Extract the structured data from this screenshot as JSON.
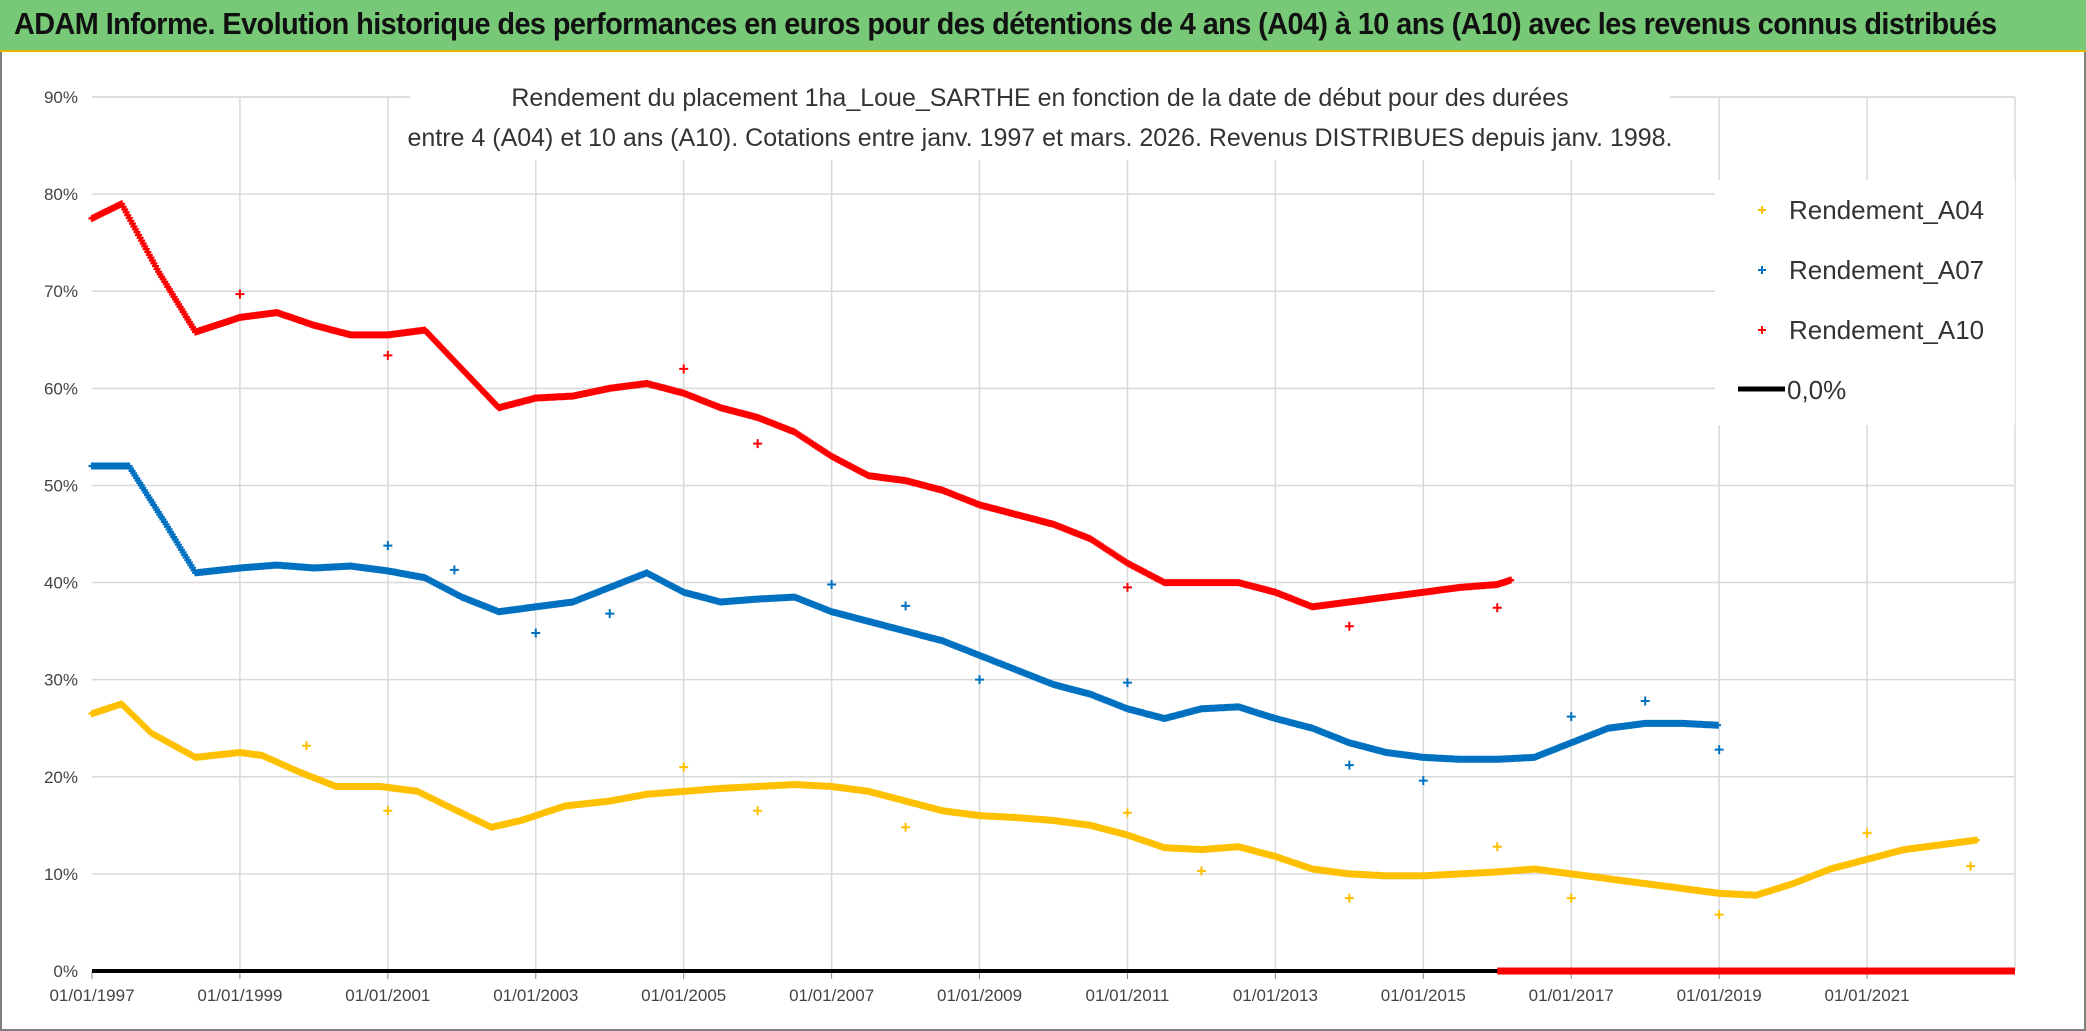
{
  "header": {
    "title": "ADAM Informe. Evolution historique des performances en euros pour des détentions de 4 ans (A04) à 10 ans (A10) avec les revenus connus distribués"
  },
  "chart_data": {
    "type": "scatter",
    "subtitle_line1": "Rendement du placement 1ha_Loue_SARTHE en fonction de la date de début pour des durées",
    "subtitle_line2": "entre 4 (A04) et 10 ans (A10). Cotations entre janv. 1997 et mars. 2026. Revenus DISTRIBUES depuis janv. 1998.",
    "x_start_year": 1997,
    "x_end_year": 2023,
    "x_tick_labels": [
      "01/01/1997",
      "01/01/1999",
      "01/01/2001",
      "01/01/2003",
      "01/01/2005",
      "01/01/2007",
      "01/01/2009",
      "01/01/2011",
      "01/01/2013",
      "01/01/2015",
      "01/01/2017",
      "01/01/2019",
      "01/01/2021"
    ],
    "ylim": [
      0,
      90
    ],
    "y_tick_labels": [
      "0%",
      "10%",
      "20%",
      "30%",
      "40%",
      "50%",
      "60%",
      "70%",
      "80%",
      "90%"
    ],
    "legend": [
      "Rendement_A04",
      "Rendement_A07",
      "Rendement_A10",
      "0,0%"
    ],
    "colors": {
      "A04": "#ffc000",
      "A07": "#0070c0",
      "A10": "#ff0000",
      "zero": "#000000"
    },
    "series": [
      {
        "name": "Rendement_A04",
        "points": [
          [
            1997.0,
            26.5
          ],
          [
            1997.4,
            27.5
          ],
          [
            1997.8,
            24.5
          ],
          [
            1998.4,
            22.0
          ],
          [
            1999.0,
            22.5
          ],
          [
            1999.3,
            22.2
          ],
          [
            1999.8,
            20.5
          ],
          [
            2000.3,
            19.0
          ],
          [
            2000.9,
            19.0
          ],
          [
            2001.4,
            18.5
          ],
          [
            2001.8,
            17.0
          ],
          [
            2002.4,
            14.8
          ],
          [
            2002.8,
            15.5
          ],
          [
            2003.4,
            17.0
          ],
          [
            2004.0,
            17.5
          ],
          [
            2004.5,
            18.2
          ],
          [
            2005.0,
            18.5
          ],
          [
            2005.5,
            18.8
          ],
          [
            2006.0,
            19.0
          ],
          [
            2006.5,
            19.2
          ],
          [
            2007.0,
            19.0
          ],
          [
            2007.5,
            18.5
          ],
          [
            2008.0,
            17.5
          ],
          [
            2008.5,
            16.5
          ],
          [
            2009.0,
            16.0
          ],
          [
            2009.5,
            15.8
          ],
          [
            2010.0,
            15.5
          ],
          [
            2010.5,
            15.0
          ],
          [
            2011.0,
            14.0
          ],
          [
            2011.5,
            12.7
          ],
          [
            2012.0,
            12.5
          ],
          [
            2012.5,
            12.8
          ],
          [
            2013.0,
            11.8
          ],
          [
            2013.5,
            10.5
          ],
          [
            2014.0,
            10.0
          ],
          [
            2014.5,
            9.8
          ],
          [
            2015.0,
            9.8
          ],
          [
            2015.5,
            10.0
          ],
          [
            2016.0,
            10.2
          ],
          [
            2016.5,
            10.5
          ],
          [
            2017.0,
            10.0
          ],
          [
            2017.5,
            9.5
          ],
          [
            2018.0,
            9.0
          ],
          [
            2018.5,
            8.5
          ],
          [
            2019.0,
            8.0
          ],
          [
            2019.5,
            7.8
          ],
          [
            2020.0,
            9.0
          ],
          [
            2020.5,
            10.5
          ],
          [
            2021.0,
            11.5
          ],
          [
            2021.5,
            12.5
          ],
          [
            2022.0,
            13.0
          ],
          [
            2022.5,
            13.5
          ]
        ],
        "outliers": [
          [
            1999.9,
            23.2
          ],
          [
            2001.0,
            16.5
          ],
          [
            2005.0,
            21.0
          ],
          [
            2006.0,
            16.5
          ],
          [
            2008.0,
            14.8
          ],
          [
            2011.0,
            16.3
          ],
          [
            2012.0,
            10.3
          ],
          [
            2014.0,
            7.5
          ],
          [
            2016.0,
            12.8
          ],
          [
            2017.0,
            7.5
          ],
          [
            2019.0,
            5.8
          ],
          [
            2021.0,
            14.2
          ],
          [
            2022.4,
            10.8
          ]
        ]
      },
      {
        "name": "Rendement_A07",
        "points": [
          [
            1997.0,
            52.0
          ],
          [
            1997.5,
            52.0
          ],
          [
            1998.0,
            46.0
          ],
          [
            1998.4,
            41.0
          ],
          [
            1999.0,
            41.5
          ],
          [
            1999.5,
            41.8
          ],
          [
            2000.0,
            41.5
          ],
          [
            2000.5,
            41.7
          ],
          [
            2001.0,
            41.2
          ],
          [
            2001.5,
            40.5
          ],
          [
            2002.0,
            38.5
          ],
          [
            2002.5,
            37.0
          ],
          [
            2003.0,
            37.5
          ],
          [
            2003.5,
            38.0
          ],
          [
            2004.0,
            39.5
          ],
          [
            2004.5,
            41.0
          ],
          [
            2005.0,
            39.0
          ],
          [
            2005.5,
            38.0
          ],
          [
            2006.0,
            38.3
          ],
          [
            2006.5,
            38.5
          ],
          [
            2007.0,
            37.0
          ],
          [
            2007.5,
            36.0
          ],
          [
            2008.0,
            35.0
          ],
          [
            2008.5,
            34.0
          ],
          [
            2009.0,
            32.5
          ],
          [
            2009.5,
            31.0
          ],
          [
            2010.0,
            29.5
          ],
          [
            2010.5,
            28.5
          ],
          [
            2011.0,
            27.0
          ],
          [
            2011.5,
            26.0
          ],
          [
            2012.0,
            27.0
          ],
          [
            2012.5,
            27.2
          ],
          [
            2013.0,
            26.0
          ],
          [
            2013.5,
            25.0
          ],
          [
            2014.0,
            23.5
          ],
          [
            2014.5,
            22.5
          ],
          [
            2015.0,
            22.0
          ],
          [
            2015.5,
            21.8
          ],
          [
            2016.0,
            21.8
          ],
          [
            2016.5,
            22.0
          ],
          [
            2017.0,
            23.5
          ],
          [
            2017.5,
            25.0
          ],
          [
            2018.0,
            25.5
          ],
          [
            2018.5,
            25.5
          ],
          [
            2019.0,
            25.3
          ]
        ],
        "outliers": [
          [
            2001.0,
            43.8
          ],
          [
            2001.9,
            41.3
          ],
          [
            2003.0,
            34.8
          ],
          [
            2004.0,
            36.8
          ],
          [
            2007.0,
            39.8
          ],
          [
            2008.0,
            37.6
          ],
          [
            2009.0,
            30.0
          ],
          [
            2011.0,
            29.7
          ],
          [
            2014.0,
            21.2
          ],
          [
            2015.0,
            19.6
          ],
          [
            2017.0,
            26.2
          ],
          [
            2018.0,
            27.8
          ],
          [
            2019.0,
            22.8
          ]
        ]
      },
      {
        "name": "Rendement_A10",
        "points": [
          [
            1997.0,
            77.5
          ],
          [
            1997.4,
            79.0
          ],
          [
            1997.9,
            72.0
          ],
          [
            1998.4,
            65.8
          ],
          [
            1999.0,
            67.3
          ],
          [
            1999.5,
            67.8
          ],
          [
            2000.0,
            66.5
          ],
          [
            2000.5,
            65.5
          ],
          [
            2001.0,
            65.5
          ],
          [
            2001.5,
            66.0
          ],
          [
            2002.0,
            62.0
          ],
          [
            2002.5,
            58.0
          ],
          [
            2003.0,
            59.0
          ],
          [
            2003.5,
            59.2
          ],
          [
            2004.0,
            60.0
          ],
          [
            2004.5,
            60.5
          ],
          [
            2005.0,
            59.5
          ],
          [
            2005.5,
            58.0
          ],
          [
            2006.0,
            57.0
          ],
          [
            2006.5,
            55.5
          ],
          [
            2007.0,
            53.0
          ],
          [
            2007.5,
            51.0
          ],
          [
            2008.0,
            50.5
          ],
          [
            2008.5,
            49.5
          ],
          [
            2009.0,
            48.0
          ],
          [
            2009.5,
            47.0
          ],
          [
            2010.0,
            46.0
          ],
          [
            2010.5,
            44.5
          ],
          [
            2011.0,
            42.0
          ],
          [
            2011.5,
            40.0
          ],
          [
            2012.0,
            40.0
          ],
          [
            2012.5,
            40.0
          ],
          [
            2013.0,
            39.0
          ],
          [
            2013.5,
            37.5
          ],
          [
            2014.0,
            38.0
          ],
          [
            2014.5,
            38.5
          ],
          [
            2015.0,
            39.0
          ],
          [
            2015.5,
            39.5
          ],
          [
            2016.0,
            39.8
          ],
          [
            2016.2,
            40.3
          ]
        ],
        "outliers": [
          [
            1999.0,
            69.7
          ],
          [
            2001.0,
            63.4
          ],
          [
            2005.0,
            62.0
          ],
          [
            2006.0,
            54.3
          ],
          [
            2011.0,
            39.5
          ],
          [
            2014.0,
            35.5
          ],
          [
            2016.0,
            37.4
          ]
        ]
      }
    ],
    "zero_line": {
      "red_segment_years": [
        2016.0,
        2023.0
      ],
      "value": 0.0
    }
  }
}
